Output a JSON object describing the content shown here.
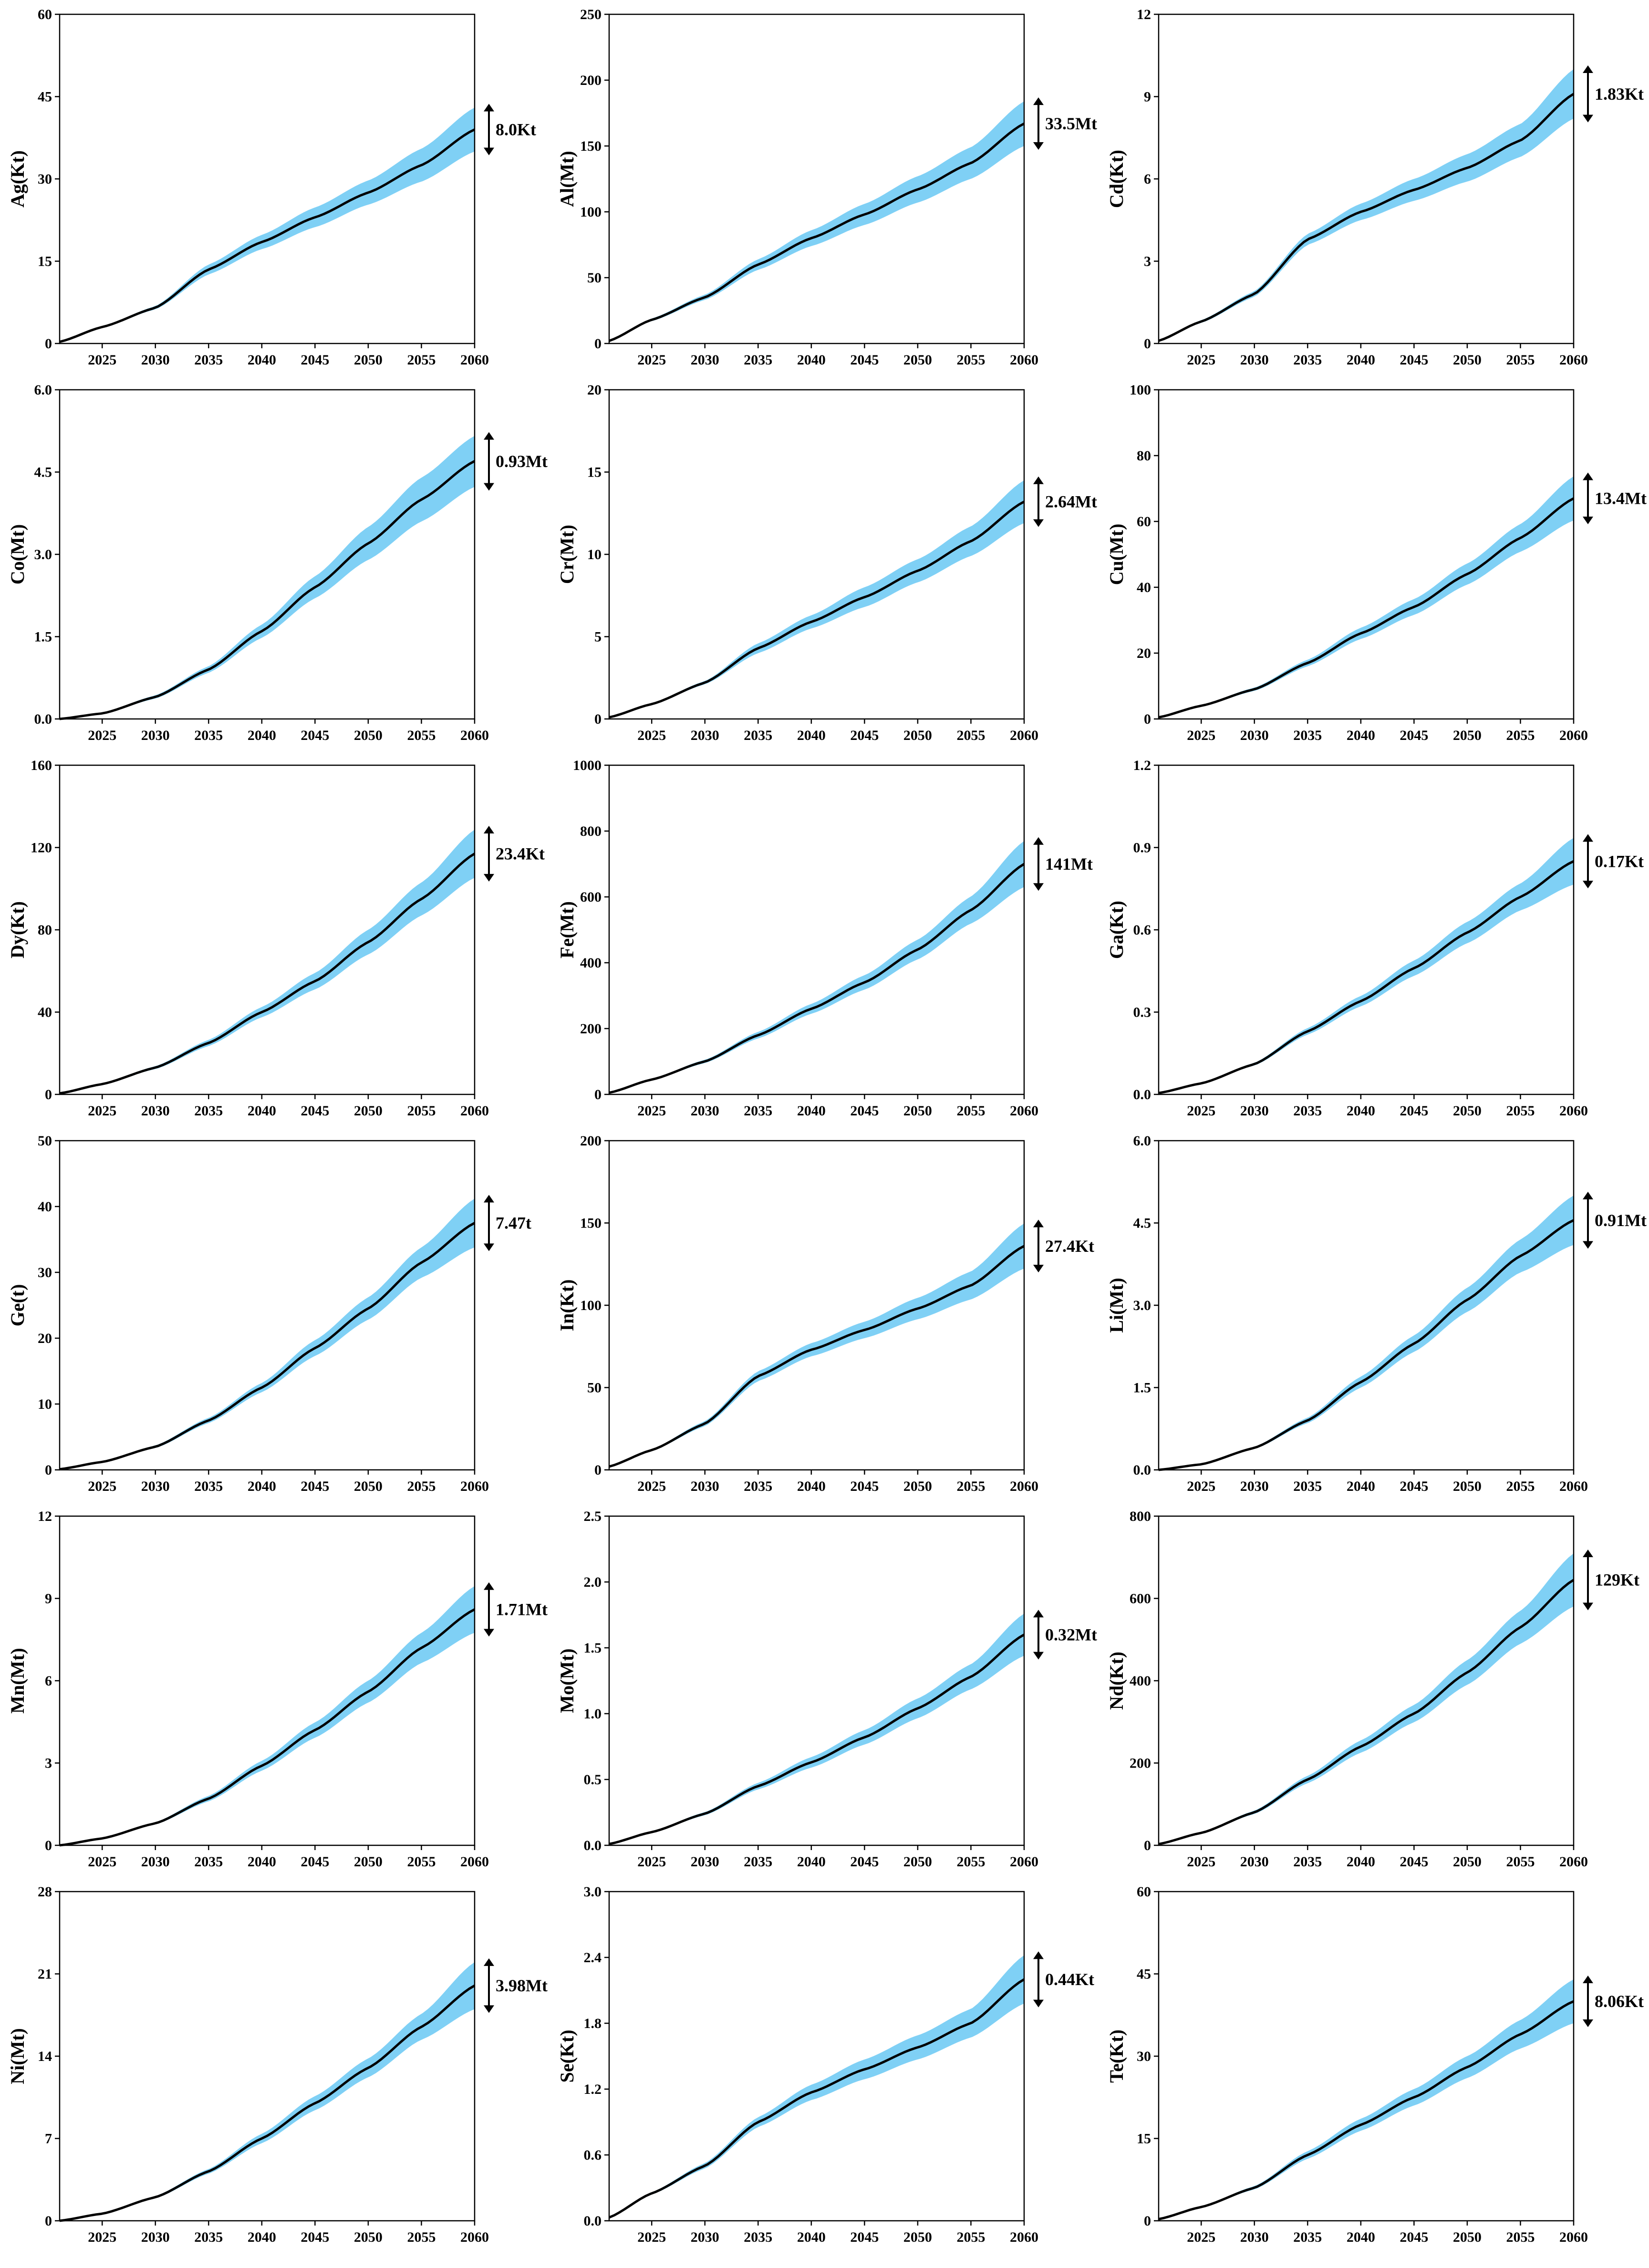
{
  "colors": {
    "band": "#7fd0f5",
    "line": "#000000",
    "axis": "#000000",
    "background": "#ffffff"
  },
  "chart_data": [
    {
      "type": "area",
      "ylabel": "Ag(Kt)",
      "ylim": [
        0,
        60
      ],
      "yticks": [
        "0",
        "15",
        "30",
        "45",
        "60"
      ],
      "xlim": [
        2021,
        2060
      ],
      "xticks": [
        "2025",
        "2030",
        "2035",
        "2040",
        "2045",
        "2050",
        "2055",
        "2060"
      ],
      "x": [
        2021,
        2025,
        2030,
        2035,
        2040,
        2045,
        2050,
        2055,
        2060
      ],
      "central": [
        0.3,
        3.0,
        6.5,
        13.5,
        18.5,
        23.0,
        27.5,
        32.5,
        39.0
      ],
      "lower": [
        0.3,
        2.9,
        6.2,
        12.6,
        17.2,
        21.2,
        25.3,
        29.5,
        35.0
      ],
      "upper": [
        0.3,
        3.1,
        6.8,
        14.4,
        19.8,
        24.8,
        29.7,
        35.5,
        43.0
      ],
      "range_label": "8.0Kt"
    },
    {
      "type": "area",
      "ylabel": "Al(Mt)",
      "ylim": [
        0,
        250
      ],
      "yticks": [
        "0",
        "50",
        "100",
        "150",
        "200",
        "250"
      ],
      "xlim": [
        2021,
        2060
      ],
      "xticks": [
        "2025",
        "2030",
        "2035",
        "2040",
        "2045",
        "2050",
        "2055",
        "2060"
      ],
      "x": [
        2021,
        2025,
        2030,
        2035,
        2040,
        2045,
        2050,
        2055,
        2060
      ],
      "central": [
        2,
        18,
        35,
        60,
        80,
        98,
        117,
        137,
        167
      ],
      "lower": [
        2,
        17,
        33,
        56,
        74,
        90,
        107,
        125,
        150
      ],
      "upper": [
        2,
        19,
        37,
        64,
        86,
        106,
        127,
        149,
        184
      ],
      "range_label": "33.5Mt"
    },
    {
      "type": "area",
      "ylabel": "Cd(Kt)",
      "ylim": [
        0,
        12
      ],
      "yticks": [
        "0",
        "3",
        "6",
        "9",
        "12"
      ],
      "xlim": [
        2021,
        2060
      ],
      "xticks": [
        "2025",
        "2030",
        "2035",
        "2040",
        "2045",
        "2050",
        "2055",
        "2060"
      ],
      "x": [
        2021,
        2025,
        2030,
        2035,
        2040,
        2045,
        2050,
        2055,
        2060
      ],
      "central": [
        0.1,
        0.8,
        1.8,
        3.8,
        4.8,
        5.6,
        6.4,
        7.4,
        9.1
      ],
      "lower": [
        0.1,
        0.75,
        1.7,
        3.6,
        4.5,
        5.2,
        5.9,
        6.8,
        8.2
      ],
      "upper": [
        0.1,
        0.85,
        1.9,
        4.0,
        5.1,
        6.0,
        6.9,
        8.0,
        10.0
      ],
      "range_label": "1.83Kt"
    },
    {
      "type": "area",
      "ylabel": "Co(Mt)",
      "ylim": [
        0,
        6
      ],
      "yticks": [
        "0.0",
        "1.5",
        "3.0",
        "4.5",
        "6.0"
      ],
      "xlim": [
        2021,
        2060
      ],
      "xticks": [
        "2025",
        "2030",
        "2035",
        "2040",
        "2045",
        "2050",
        "2055",
        "2060"
      ],
      "x": [
        2021,
        2025,
        2030,
        2035,
        2040,
        2045,
        2050,
        2055,
        2060
      ],
      "central": [
        0,
        0.1,
        0.4,
        0.9,
        1.6,
        2.4,
        3.2,
        4.0,
        4.7
      ],
      "lower": [
        0,
        0.09,
        0.37,
        0.84,
        1.48,
        2.2,
        2.9,
        3.6,
        4.23
      ],
      "upper": [
        0,
        0.11,
        0.43,
        0.96,
        1.72,
        2.6,
        3.5,
        4.4,
        5.16
      ],
      "range_label": "0.93Mt"
    },
    {
      "type": "area",
      "ylabel": "Cr(Mt)",
      "ylim": [
        0,
        20
      ],
      "yticks": [
        "0",
        "5",
        "10",
        "15",
        "20"
      ],
      "xlim": [
        2021,
        2060
      ],
      "xticks": [
        "2025",
        "2030",
        "2035",
        "2040",
        "2045",
        "2050",
        "2055",
        "2060"
      ],
      "x": [
        2021,
        2025,
        2030,
        2035,
        2040,
        2045,
        2050,
        2055,
        2060
      ],
      "central": [
        0.1,
        0.9,
        2.2,
        4.3,
        5.9,
        7.4,
        9.0,
        10.8,
        13.2
      ],
      "lower": [
        0.1,
        0.85,
        2.1,
        4.0,
        5.5,
        6.8,
        8.3,
        9.9,
        11.9
      ],
      "upper": [
        0.1,
        0.95,
        2.3,
        4.6,
        6.3,
        8.0,
        9.7,
        11.7,
        14.5
      ],
      "range_label": "2.64Mt"
    },
    {
      "type": "area",
      "ylabel": "Cu(Mt)",
      "ylim": [
        0,
        100
      ],
      "yticks": [
        "0",
        "20",
        "40",
        "60",
        "80",
        "100"
      ],
      "xlim": [
        2021,
        2060
      ],
      "xticks": [
        "2025",
        "2030",
        "2035",
        "2040",
        "2045",
        "2050",
        "2055",
        "2060"
      ],
      "x": [
        2021,
        2025,
        2030,
        2035,
        2040,
        2045,
        2050,
        2055,
        2060
      ],
      "central": [
        0.5,
        4,
        9,
        17,
        26,
        34,
        44,
        55,
        67
      ],
      "lower": [
        0.5,
        3.8,
        8.5,
        16,
        24.3,
        31.6,
        40.8,
        50.8,
        60.3
      ],
      "upper": [
        0.5,
        4.2,
        9.5,
        18,
        27.7,
        36.4,
        47.2,
        59.2,
        73.7
      ],
      "range_label": "13.4Mt"
    },
    {
      "type": "area",
      "ylabel": "Dy(Kt)",
      "ylim": [
        0,
        160
      ],
      "yticks": [
        "0",
        "40",
        "80",
        "120",
        "160"
      ],
      "xlim": [
        2021,
        2060
      ],
      "xticks": [
        "2025",
        "2030",
        "2035",
        "2040",
        "2045",
        "2050",
        "2055",
        "2060"
      ],
      "x": [
        2021,
        2025,
        2030,
        2035,
        2040,
        2045,
        2050,
        2055,
        2060
      ],
      "central": [
        0.5,
        5,
        13,
        25,
        40,
        55,
        74,
        95,
        117
      ],
      "lower": [
        0.5,
        4.8,
        12.3,
        23.5,
        37.5,
        51,
        68,
        87,
        105.3
      ],
      "upper": [
        0.5,
        5.2,
        13.7,
        26.5,
        42.5,
        59,
        80,
        103,
        128.7
      ],
      "range_label": "23.4Kt"
    },
    {
      "type": "area",
      "ylabel": "Fe(Mt)",
      "ylim": [
        0,
        1000
      ],
      "yticks": [
        "0",
        "200",
        "400",
        "600",
        "800",
        "1000"
      ],
      "xlim": [
        2021,
        2060
      ],
      "xticks": [
        "2025",
        "2030",
        "2035",
        "2040",
        "2045",
        "2050",
        "2055",
        "2060"
      ],
      "x": [
        2021,
        2025,
        2030,
        2035,
        2040,
        2045,
        2050,
        2055,
        2060
      ],
      "central": [
        5,
        45,
        100,
        180,
        260,
        340,
        440,
        560,
        700
      ],
      "lower": [
        5,
        43,
        95,
        170,
        245,
        318,
        410,
        519,
        630
      ],
      "upper": [
        5,
        47,
        105,
        190,
        275,
        362,
        470,
        601,
        770
      ],
      "range_label": "141Mt"
    },
    {
      "type": "area",
      "ylabel": "Ga(Kt)",
      "ylim": [
        0,
        1.2
      ],
      "yticks": [
        "0.0",
        "0.3",
        "0.6",
        "0.9",
        "1.2"
      ],
      "xlim": [
        2021,
        2060
      ],
      "xticks": [
        "2025",
        "2030",
        "2035",
        "2040",
        "2045",
        "2050",
        "2055",
        "2060"
      ],
      "x": [
        2021,
        2025,
        2030,
        2035,
        2040,
        2045,
        2050,
        2055,
        2060
      ],
      "central": [
        0.005,
        0.04,
        0.11,
        0.23,
        0.34,
        0.46,
        0.59,
        0.72,
        0.85
      ],
      "lower": [
        0.005,
        0.038,
        0.105,
        0.218,
        0.321,
        0.432,
        0.551,
        0.671,
        0.765
      ],
      "upper": [
        0.005,
        0.042,
        0.115,
        0.242,
        0.359,
        0.488,
        0.629,
        0.769,
        0.935
      ],
      "range_label": "0.17Kt"
    },
    {
      "type": "area",
      "ylabel": "Ge(t)",
      "ylim": [
        0,
        50
      ],
      "yticks": [
        "0",
        "10",
        "20",
        "30",
        "40",
        "50"
      ],
      "xlim": [
        2021,
        2060
      ],
      "xticks": [
        "2025",
        "2030",
        "2035",
        "2040",
        "2045",
        "2050",
        "2055",
        "2060"
      ],
      "x": [
        2021,
        2025,
        2030,
        2035,
        2040,
        2045,
        2050,
        2055,
        2060
      ],
      "central": [
        0.1,
        1.2,
        3.5,
        7.5,
        12.5,
        18.5,
        24.5,
        31.5,
        37.5
      ],
      "lower": [
        0.1,
        1.15,
        3.3,
        7.1,
        11.8,
        17.3,
        22.8,
        29.2,
        33.8
      ],
      "upper": [
        0.1,
        1.25,
        3.7,
        7.9,
        13.2,
        19.7,
        26.2,
        33.8,
        41.2
      ],
      "range_label": "7.47t"
    },
    {
      "type": "area",
      "ylabel": "In(Kt)",
      "ylim": [
        0,
        200
      ],
      "yticks": [
        "0",
        "50",
        "100",
        "150",
        "200"
      ],
      "xlim": [
        2021,
        2060
      ],
      "xticks": [
        "2025",
        "2030",
        "2035",
        "2040",
        "2045",
        "2050",
        "2055",
        "2060"
      ],
      "x": [
        2021,
        2025,
        2030,
        2035,
        2040,
        2045,
        2050,
        2055,
        2060
      ],
      "central": [
        2,
        12,
        28,
        57,
        73,
        85,
        98,
        112,
        136
      ],
      "lower": [
        2,
        11.5,
        26.5,
        54,
        69,
        80,
        91.5,
        103.5,
        122.3
      ],
      "upper": [
        2,
        12.5,
        29.5,
        60,
        77,
        90,
        104.5,
        120.5,
        149.7
      ],
      "range_label": "27.4Kt"
    },
    {
      "type": "area",
      "ylabel": "Li(Mt)",
      "ylim": [
        0,
        6
      ],
      "yticks": [
        "0.0",
        "1.5",
        "3.0",
        "4.5",
        "6.0"
      ],
      "xlim": [
        2021,
        2060
      ],
      "xticks": [
        "2025",
        "2030",
        "2035",
        "2040",
        "2045",
        "2050",
        "2055",
        "2060"
      ],
      "x": [
        2021,
        2025,
        2030,
        2035,
        2040,
        2045,
        2050,
        2055,
        2060
      ],
      "central": [
        0,
        0.1,
        0.4,
        0.9,
        1.6,
        2.3,
        3.1,
        3.9,
        4.55
      ],
      "lower": [
        0,
        0.095,
        0.38,
        0.85,
        1.5,
        2.15,
        2.88,
        3.6,
        4.1
      ],
      "upper": [
        0,
        0.105,
        0.42,
        0.95,
        1.7,
        2.45,
        3.32,
        4.2,
        5.0
      ],
      "range_label": "0.91Mt"
    },
    {
      "type": "area",
      "ylabel": "Mn(Mt)",
      "ylim": [
        0,
        12
      ],
      "yticks": [
        "0",
        "3",
        "6",
        "9",
        "12"
      ],
      "xlim": [
        2021,
        2060
      ],
      "xticks": [
        "2025",
        "2030",
        "2035",
        "2040",
        "2045",
        "2050",
        "2055",
        "2060"
      ],
      "x": [
        2021,
        2025,
        2030,
        2035,
        2040,
        2045,
        2050,
        2055,
        2060
      ],
      "central": [
        0,
        0.25,
        0.8,
        1.7,
        2.9,
        4.2,
        5.6,
        7.2,
        8.6
      ],
      "lower": [
        0,
        0.24,
        0.76,
        1.6,
        2.72,
        3.92,
        5.2,
        6.65,
        7.75
      ],
      "upper": [
        0,
        0.26,
        0.84,
        1.8,
        3.08,
        4.48,
        6.0,
        7.75,
        9.45
      ],
      "range_label": "1.71Mt"
    },
    {
      "type": "area",
      "ylabel": "Mo(Mt)",
      "ylim": [
        0,
        2.5
      ],
      "yticks": [
        "0.0",
        "0.5",
        "1.0",
        "1.5",
        "2.0",
        "2.5"
      ],
      "xlim": [
        2021,
        2060
      ],
      "xticks": [
        "2025",
        "2030",
        "2035",
        "2040",
        "2045",
        "2050",
        "2055",
        "2060"
      ],
      "x": [
        2021,
        2025,
        2030,
        2035,
        2040,
        2045,
        2050,
        2055,
        2060
      ],
      "central": [
        0.01,
        0.1,
        0.24,
        0.45,
        0.63,
        0.82,
        1.04,
        1.28,
        1.6
      ],
      "lower": [
        0.01,
        0.095,
        0.228,
        0.425,
        0.59,
        0.765,
        0.965,
        1.185,
        1.44
      ],
      "upper": [
        0.01,
        0.105,
        0.252,
        0.475,
        0.67,
        0.875,
        1.115,
        1.375,
        1.76
      ],
      "range_label": "0.32Mt"
    },
    {
      "type": "area",
      "ylabel": "Nd(Kt)",
      "ylim": [
        0,
        800
      ],
      "yticks": [
        "0",
        "200",
        "400",
        "600",
        "800"
      ],
      "xlim": [
        2021,
        2060
      ],
      "xticks": [
        "2025",
        "2030",
        "2035",
        "2040",
        "2045",
        "2050",
        "2055",
        "2060"
      ],
      "x": [
        2021,
        2025,
        2030,
        2035,
        2040,
        2045,
        2050,
        2055,
        2060
      ],
      "central": [
        3,
        30,
        80,
        160,
        240,
        320,
        420,
        530,
        645
      ],
      "lower": [
        3,
        28.5,
        76,
        151,
        225,
        299,
        390,
        490,
        580.5
      ],
      "upper": [
        3,
        31.5,
        84,
        169,
        255,
        341,
        450,
        570,
        709.5
      ],
      "range_label": "129Kt"
    },
    {
      "type": "area",
      "ylabel": "Ni(Mt)",
      "ylim": [
        0,
        28
      ],
      "yticks": [
        "0",
        "7",
        "14",
        "21",
        "28"
      ],
      "xlim": [
        2021,
        2060
      ],
      "xticks": [
        "2025",
        "2030",
        "2035",
        "2040",
        "2045",
        "2050",
        "2055",
        "2060"
      ],
      "x": [
        2021,
        2025,
        2030,
        2035,
        2040,
        2045,
        2050,
        2055,
        2060
      ],
      "central": [
        0,
        0.6,
        2.0,
        4.2,
        7.0,
        10.0,
        13.0,
        16.5,
        20.0
      ],
      "lower": [
        0,
        0.57,
        1.9,
        4.0,
        6.6,
        9.4,
        12.2,
        15.4,
        18.0
      ],
      "upper": [
        0,
        0.63,
        2.1,
        4.4,
        7.4,
        10.6,
        13.8,
        17.6,
        22.0
      ],
      "range_label": "3.98Mt"
    },
    {
      "type": "area",
      "ylabel": "Se(Kt)",
      "ylim": [
        0,
        3
      ],
      "yticks": [
        "0.0",
        "0.6",
        "1.2",
        "1.8",
        "2.4",
        "3.0"
      ],
      "xlim": [
        2021,
        2060
      ],
      "xticks": [
        "2025",
        "2030",
        "2035",
        "2040",
        "2045",
        "2050",
        "2055",
        "2060"
      ],
      "x": [
        2021,
        2025,
        2030,
        2035,
        2040,
        2045,
        2050,
        2055,
        2060
      ],
      "central": [
        0.03,
        0.25,
        0.5,
        0.9,
        1.17,
        1.38,
        1.58,
        1.8,
        2.2
      ],
      "lower": [
        0.03,
        0.24,
        0.475,
        0.855,
        1.1,
        1.29,
        1.47,
        1.67,
        1.98
      ],
      "upper": [
        0.03,
        0.26,
        0.525,
        0.945,
        1.24,
        1.47,
        1.69,
        1.93,
        2.42
      ],
      "range_label": "0.44Kt"
    },
    {
      "type": "area",
      "ylabel": "Te(Kt)",
      "ylim": [
        0,
        60
      ],
      "yticks": [
        "0",
        "15",
        "30",
        "45",
        "60"
      ],
      "xlim": [
        2021,
        2060
      ],
      "xticks": [
        "2025",
        "2030",
        "2035",
        "2040",
        "2045",
        "2050",
        "2055",
        "2060"
      ],
      "x": [
        2021,
        2025,
        2030,
        2035,
        2040,
        2045,
        2050,
        2055,
        2060
      ],
      "central": [
        0.3,
        2.5,
        6.0,
        12.0,
        17.5,
        22.5,
        28.0,
        34.0,
        40.0
      ],
      "lower": [
        0.3,
        2.4,
        5.7,
        11.3,
        16.4,
        21.0,
        26.0,
        31.4,
        36.0
      ],
      "upper": [
        0.3,
        2.6,
        6.3,
        12.7,
        18.6,
        24.0,
        30.0,
        36.6,
        44.0
      ],
      "range_label": "8.06Kt"
    }
  ]
}
